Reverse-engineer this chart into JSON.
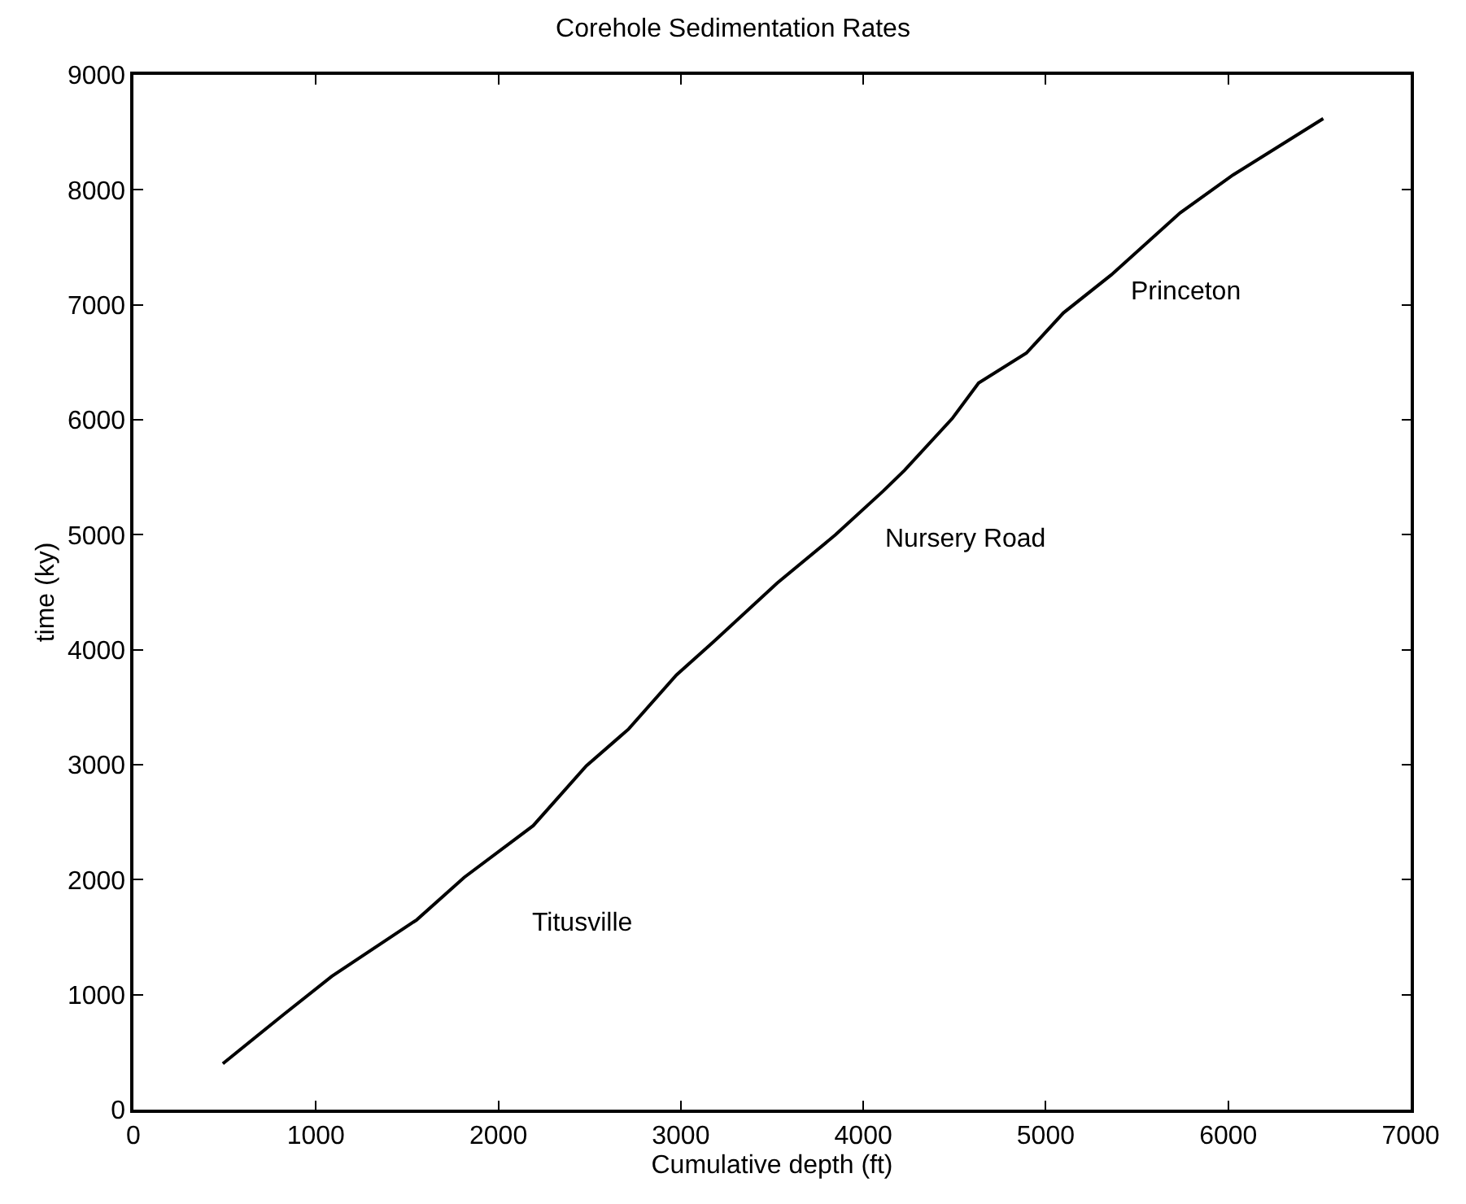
{
  "chart_data": {
    "type": "line",
    "title": "Corehole Sedimentation Rates",
    "xlabel": "Cumulative depth (ft)",
    "ylabel": "time (ky)",
    "x": [
      490,
      825,
      1087,
      1552,
      1813,
      2191,
      2482,
      2714,
      2976,
      3180,
      3528,
      3848,
      4109,
      4226,
      4487,
      4632,
      4894,
      5097,
      5359,
      5737,
      6027,
      6521
    ],
    "series": [
      {
        "color": "#000000",
        "values": [
          400,
          830,
          1160,
          1650,
          2020,
          2470,
          2990,
          3310,
          3780,
          4070,
          4580,
          5000,
          5380,
          5560,
          6010,
          6320,
          6580,
          6930,
          7260,
          7800,
          8130,
          8620
        ]
      }
    ],
    "annotations": [
      "Titusville",
      "Nursery Road",
      "Princeton"
    ],
    "xlim": [
      0,
      7000
    ],
    "xticks": [
      0,
      1000,
      2000,
      3000,
      4000,
      5000,
      6000,
      7000
    ],
    "ylim": [
      0,
      9000
    ],
    "yticks": [
      0,
      1000,
      2000,
      3000,
      4000,
      5000,
      6000,
      7000,
      8000,
      9000
    ],
    "grid": false,
    "marker": "none",
    "line_style": "solid"
  }
}
